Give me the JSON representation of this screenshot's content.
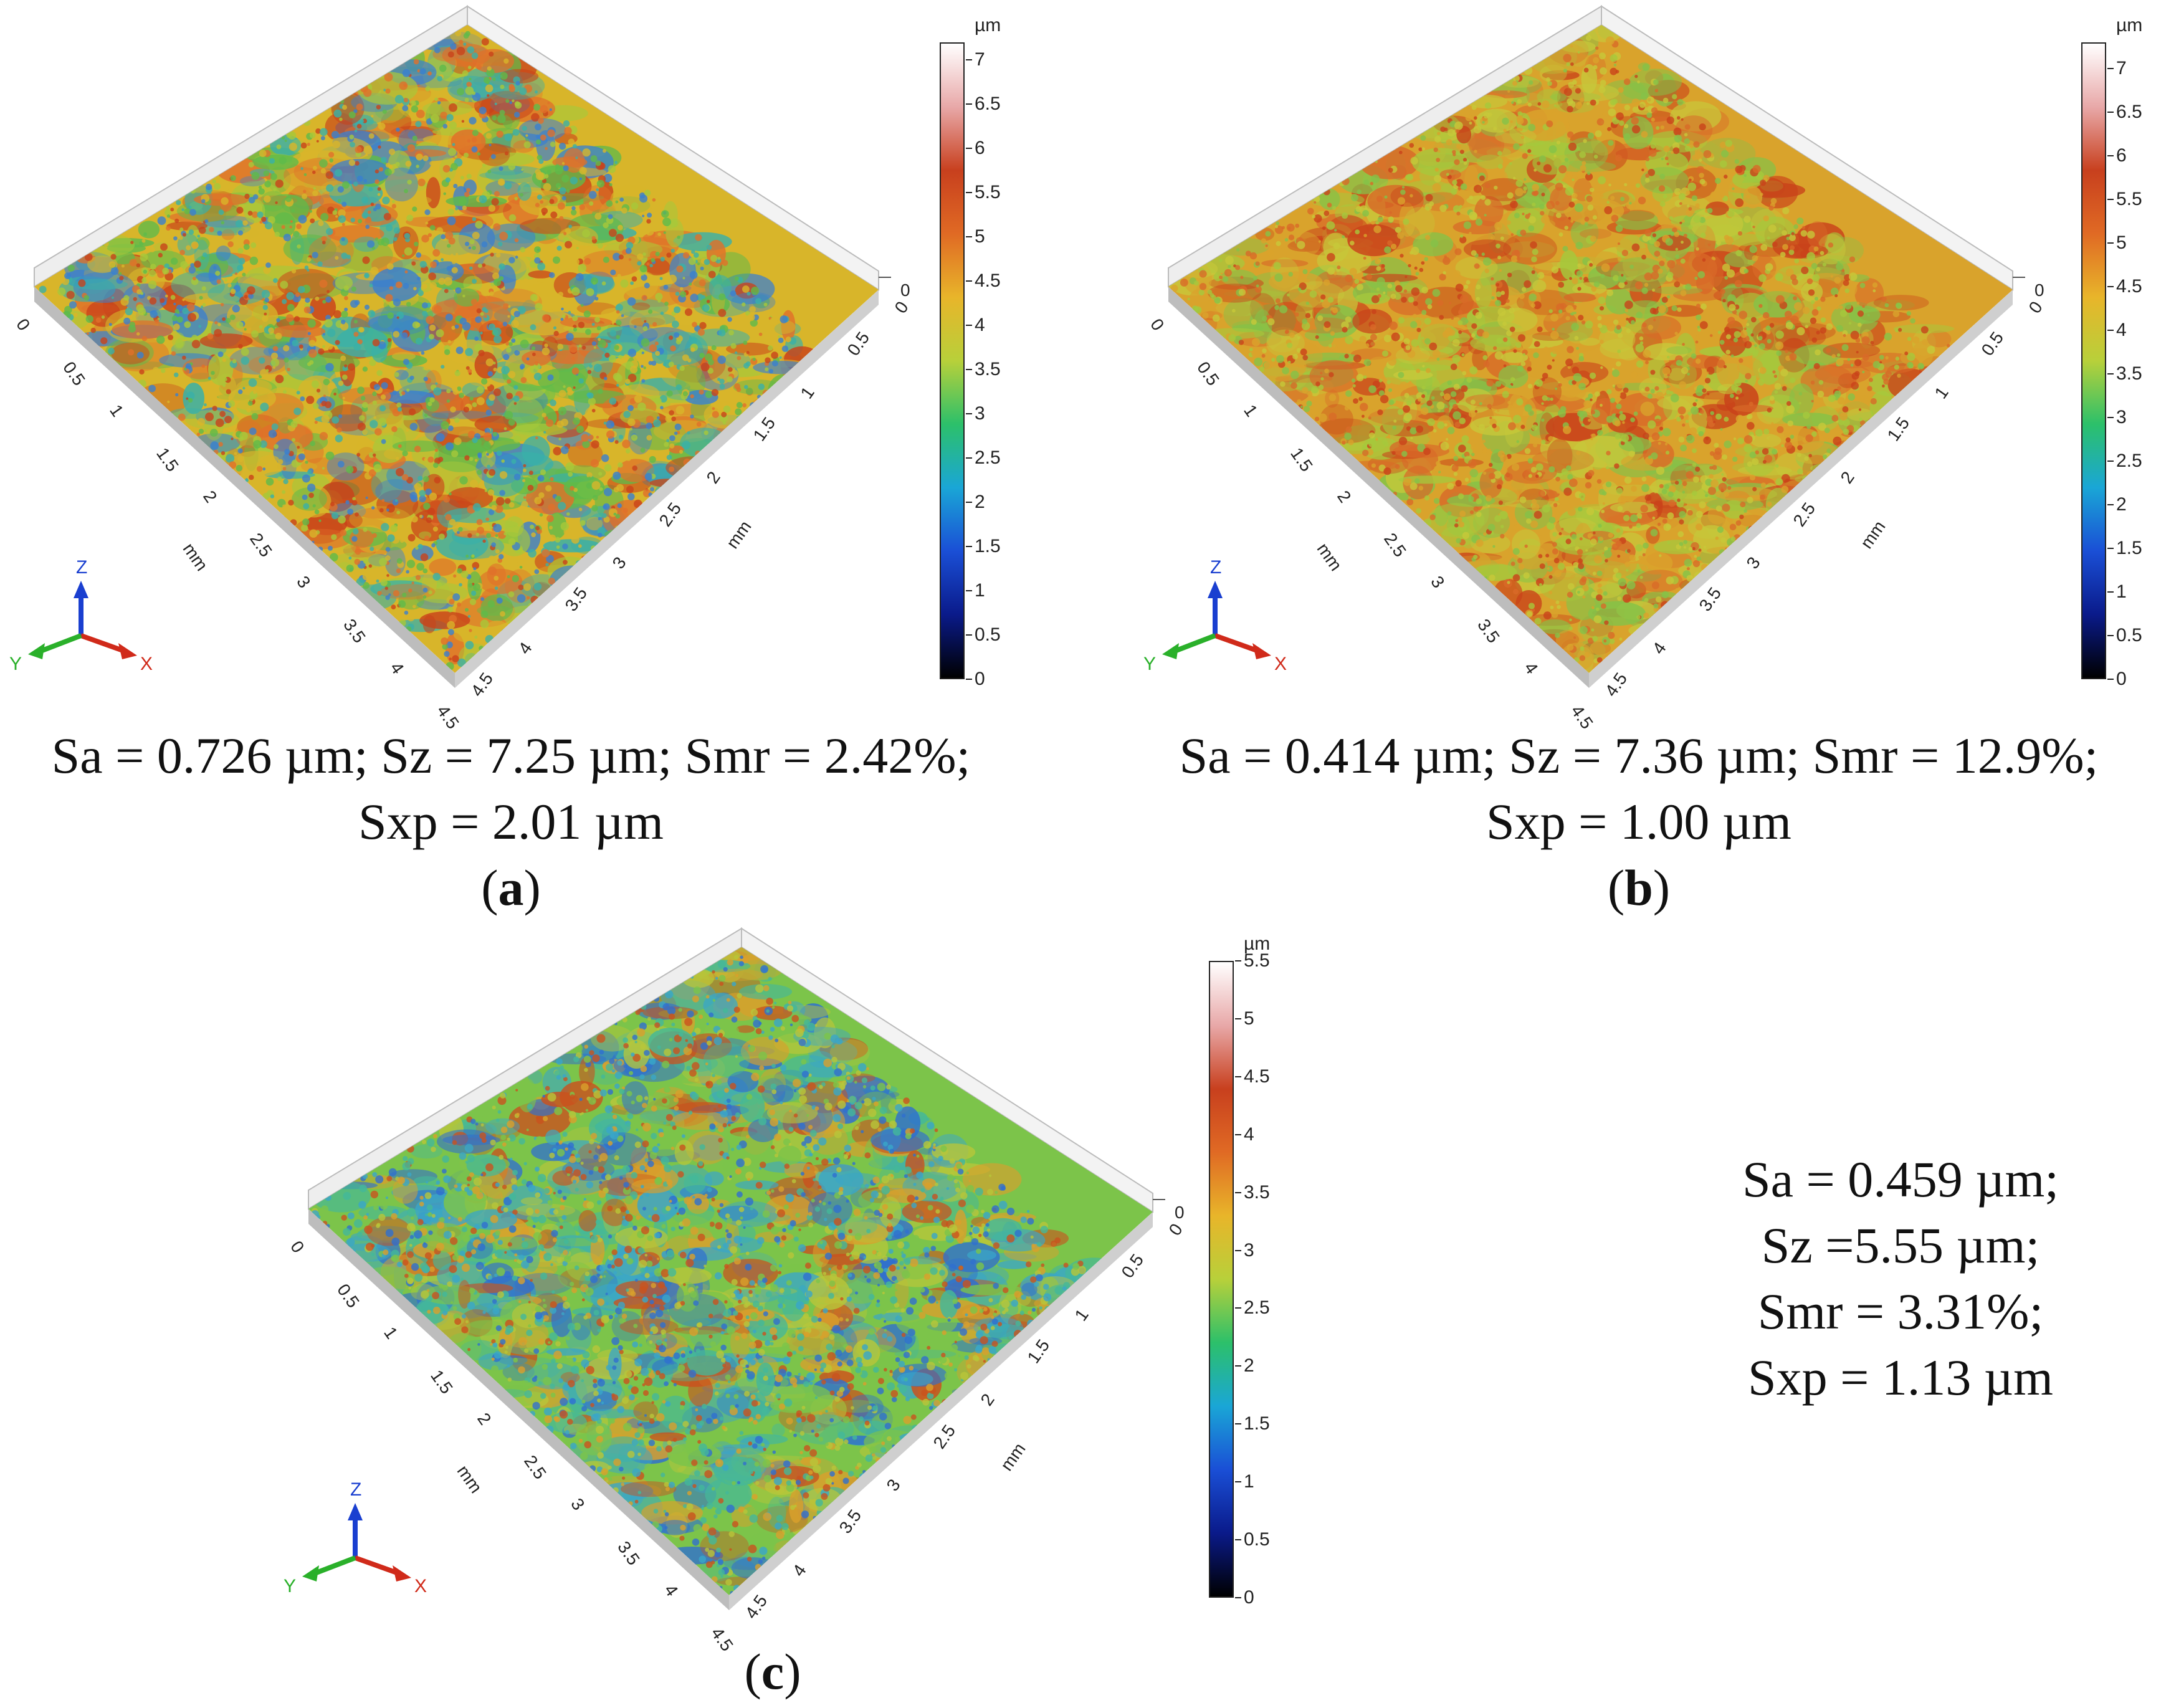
{
  "panels": [
    {
      "id": "a",
      "label": "a",
      "caption_line1": "Sa = 0.726 µm; Sz = 7.25 µm; Smr = 2.42%;",
      "caption_line2": "Sxp = 2.01 µm",
      "colorbar": {
        "unit": "µm",
        "max": 7.2,
        "ticks": [
          "0",
          "0.5",
          "1",
          "1.5",
          "2",
          "2.5",
          "3",
          "3.5",
          "4",
          "4.5",
          "5",
          "5.5",
          "6",
          "6.5",
          "7"
        ]
      },
      "axis_ticks_left": [
        "0",
        "0.5",
        "1",
        "1.5",
        "2",
        "2.5",
        "3",
        "3.5",
        "4",
        "4.5"
      ],
      "axis_ticks_right": [
        "0",
        "0.5",
        "1",
        "1.5",
        "2",
        "2.5",
        "3",
        "3.5",
        "4",
        "4.5"
      ],
      "axis_unit": "mm",
      "triad": {
        "x": "X",
        "y": "Y",
        "z": "Z"
      },
      "palette": [
        "#c9421a",
        "#e0702a",
        "#d8b52a",
        "#a8c83a",
        "#5fba4a",
        "#3ab0a8",
        "#3a7fd0"
      ]
    },
    {
      "id": "b",
      "label": "b",
      "caption_line1": "Sa = 0.414 µm; Sz = 7.36 µm; Smr = 12.9%;",
      "caption_line2": "Sxp = 1.00 µm",
      "colorbar": {
        "unit": "µm",
        "max": 7.3,
        "ticks": [
          "0",
          "0.5",
          "1",
          "1.5",
          "2",
          "2.5",
          "3",
          "3.5",
          "4",
          "4.5",
          "5",
          "5.5",
          "6",
          "6.5",
          "7"
        ]
      },
      "axis_ticks_left": [
        "0",
        "0.5",
        "1",
        "1.5",
        "2",
        "2.5",
        "3",
        "3.5",
        "4",
        "4.5"
      ],
      "axis_ticks_right": [
        "0",
        "0.5",
        "1",
        "1.5",
        "2",
        "2.5",
        "3",
        "3.5",
        "4",
        "4.5"
      ],
      "axis_unit": "mm",
      "triad": {
        "x": "X",
        "y": "Y",
        "z": "Z"
      },
      "palette": [
        "#c9421a",
        "#d86a28",
        "#d9a32c",
        "#c7c83a",
        "#a6c83c",
        "#85c248"
      ]
    },
    {
      "id": "c",
      "label": "c",
      "caption_lines": [
        "Sa = 0.459 µm;",
        "Sz =5.55 µm;",
        "Smr = 3.31%;",
        "Sxp = 1.13 µm"
      ],
      "colorbar": {
        "unit": "µm",
        "max": 5.5,
        "ticks": [
          "0",
          "0.5",
          "1",
          "1.5",
          "2",
          "2.5",
          "3",
          "3.5",
          "4",
          "4.5",
          "5",
          "5.5"
        ]
      },
      "axis_ticks_left": [
        "0",
        "0.5",
        "1",
        "1.5",
        "2",
        "2.5",
        "3",
        "3.5",
        "4",
        "4.5"
      ],
      "axis_ticks_right": [
        "0",
        "0.5",
        "1",
        "1.5",
        "2",
        "2.5",
        "3",
        "3.5",
        "4",
        "4.5"
      ],
      "axis_unit": "mm",
      "triad": {
        "x": "X",
        "y": "Y",
        "z": "Z"
      },
      "palette": [
        "#3aa6c8",
        "#44b89a",
        "#7cc44a",
        "#b8c63a",
        "#d9a02c",
        "#c9521e",
        "#2f6fd0"
      ]
    }
  ],
  "colorbar_gradient": [
    "#000000",
    "#0a1a8a",
    "#1a4fd6",
    "#1aa6d6",
    "#2cc06a",
    "#b8d03a",
    "#e8b52a",
    "#e06a24",
    "#c8401e",
    "#e8a8a8",
    "#ffffff"
  ]
}
